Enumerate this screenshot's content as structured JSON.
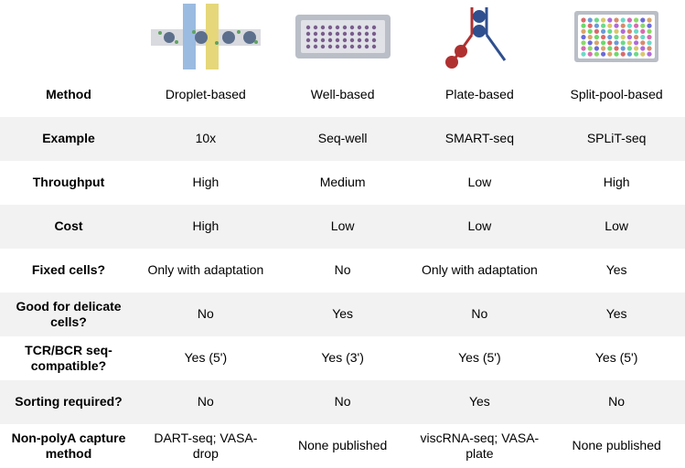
{
  "table": {
    "type": "table",
    "background_color": "#ffffff",
    "stripe_color": "#f2f2f2",
    "text_color": "#000000",
    "font_family": "Arial",
    "label_fontsize": 14,
    "label_fontweight": "bold",
    "cell_fontsize": 14,
    "columns": [
      "Droplet-based",
      "Well-based",
      "Plate-based",
      "Split-pool-based"
    ],
    "icon_colors": {
      "droplet": {
        "channel_h": "#d9dadf",
        "channel_v1": "#9bbbe0",
        "channel_v2": "#e6d77a",
        "bead": "#5c6f8c",
        "dot": "#5fa35f"
      },
      "well": {
        "plate_outer": "#b9bec7",
        "plate_inner": "#e0e2e8",
        "well": "#7a5c8c"
      },
      "plate": {
        "line1": "#b03030",
        "line2": "#2f4f8f",
        "cell1": "#b03030",
        "cell2": "#2f4f8f"
      },
      "splitpool": {
        "plate_outer": "#b9bec7",
        "plate_inner": "#ffffff"
      }
    },
    "rows": [
      {
        "label": "Method",
        "values": [
          "Droplet-based",
          "Well-based",
          "Plate-based",
          "Split-pool-based"
        ],
        "striped": false
      },
      {
        "label": "Example",
        "values": [
          "10x",
          "Seq-well",
          "SMART-seq",
          "SPLiT-seq"
        ],
        "striped": true
      },
      {
        "label": "Throughput",
        "values": [
          "High",
          "Medium",
          "Low",
          "High"
        ],
        "striped": false
      },
      {
        "label": "Cost",
        "values": [
          "High",
          "Low",
          "Low",
          "Low"
        ],
        "striped": true
      },
      {
        "label": "Fixed cells?",
        "values": [
          "Only with adaptation",
          "No",
          "Only with adaptation",
          "Yes"
        ],
        "striped": false
      },
      {
        "label": "Good for delicate cells?",
        "values": [
          "No",
          "Yes",
          "No",
          "Yes"
        ],
        "striped": true
      },
      {
        "label": "TCR/BCR seq-compatible?",
        "values": [
          "Yes (5')",
          "Yes (3')",
          "Yes (5')",
          "Yes (5')"
        ],
        "striped": false
      },
      {
        "label": "Sorting required?",
        "values": [
          "No",
          "No",
          "Yes",
          "No"
        ],
        "striped": true
      },
      {
        "label": "Non-polyA capture method",
        "values": [
          "DART-seq; VASA-drop",
          "None published",
          "viscRNA-seq; VASA-plate",
          "None published"
        ],
        "striped": false
      }
    ]
  }
}
